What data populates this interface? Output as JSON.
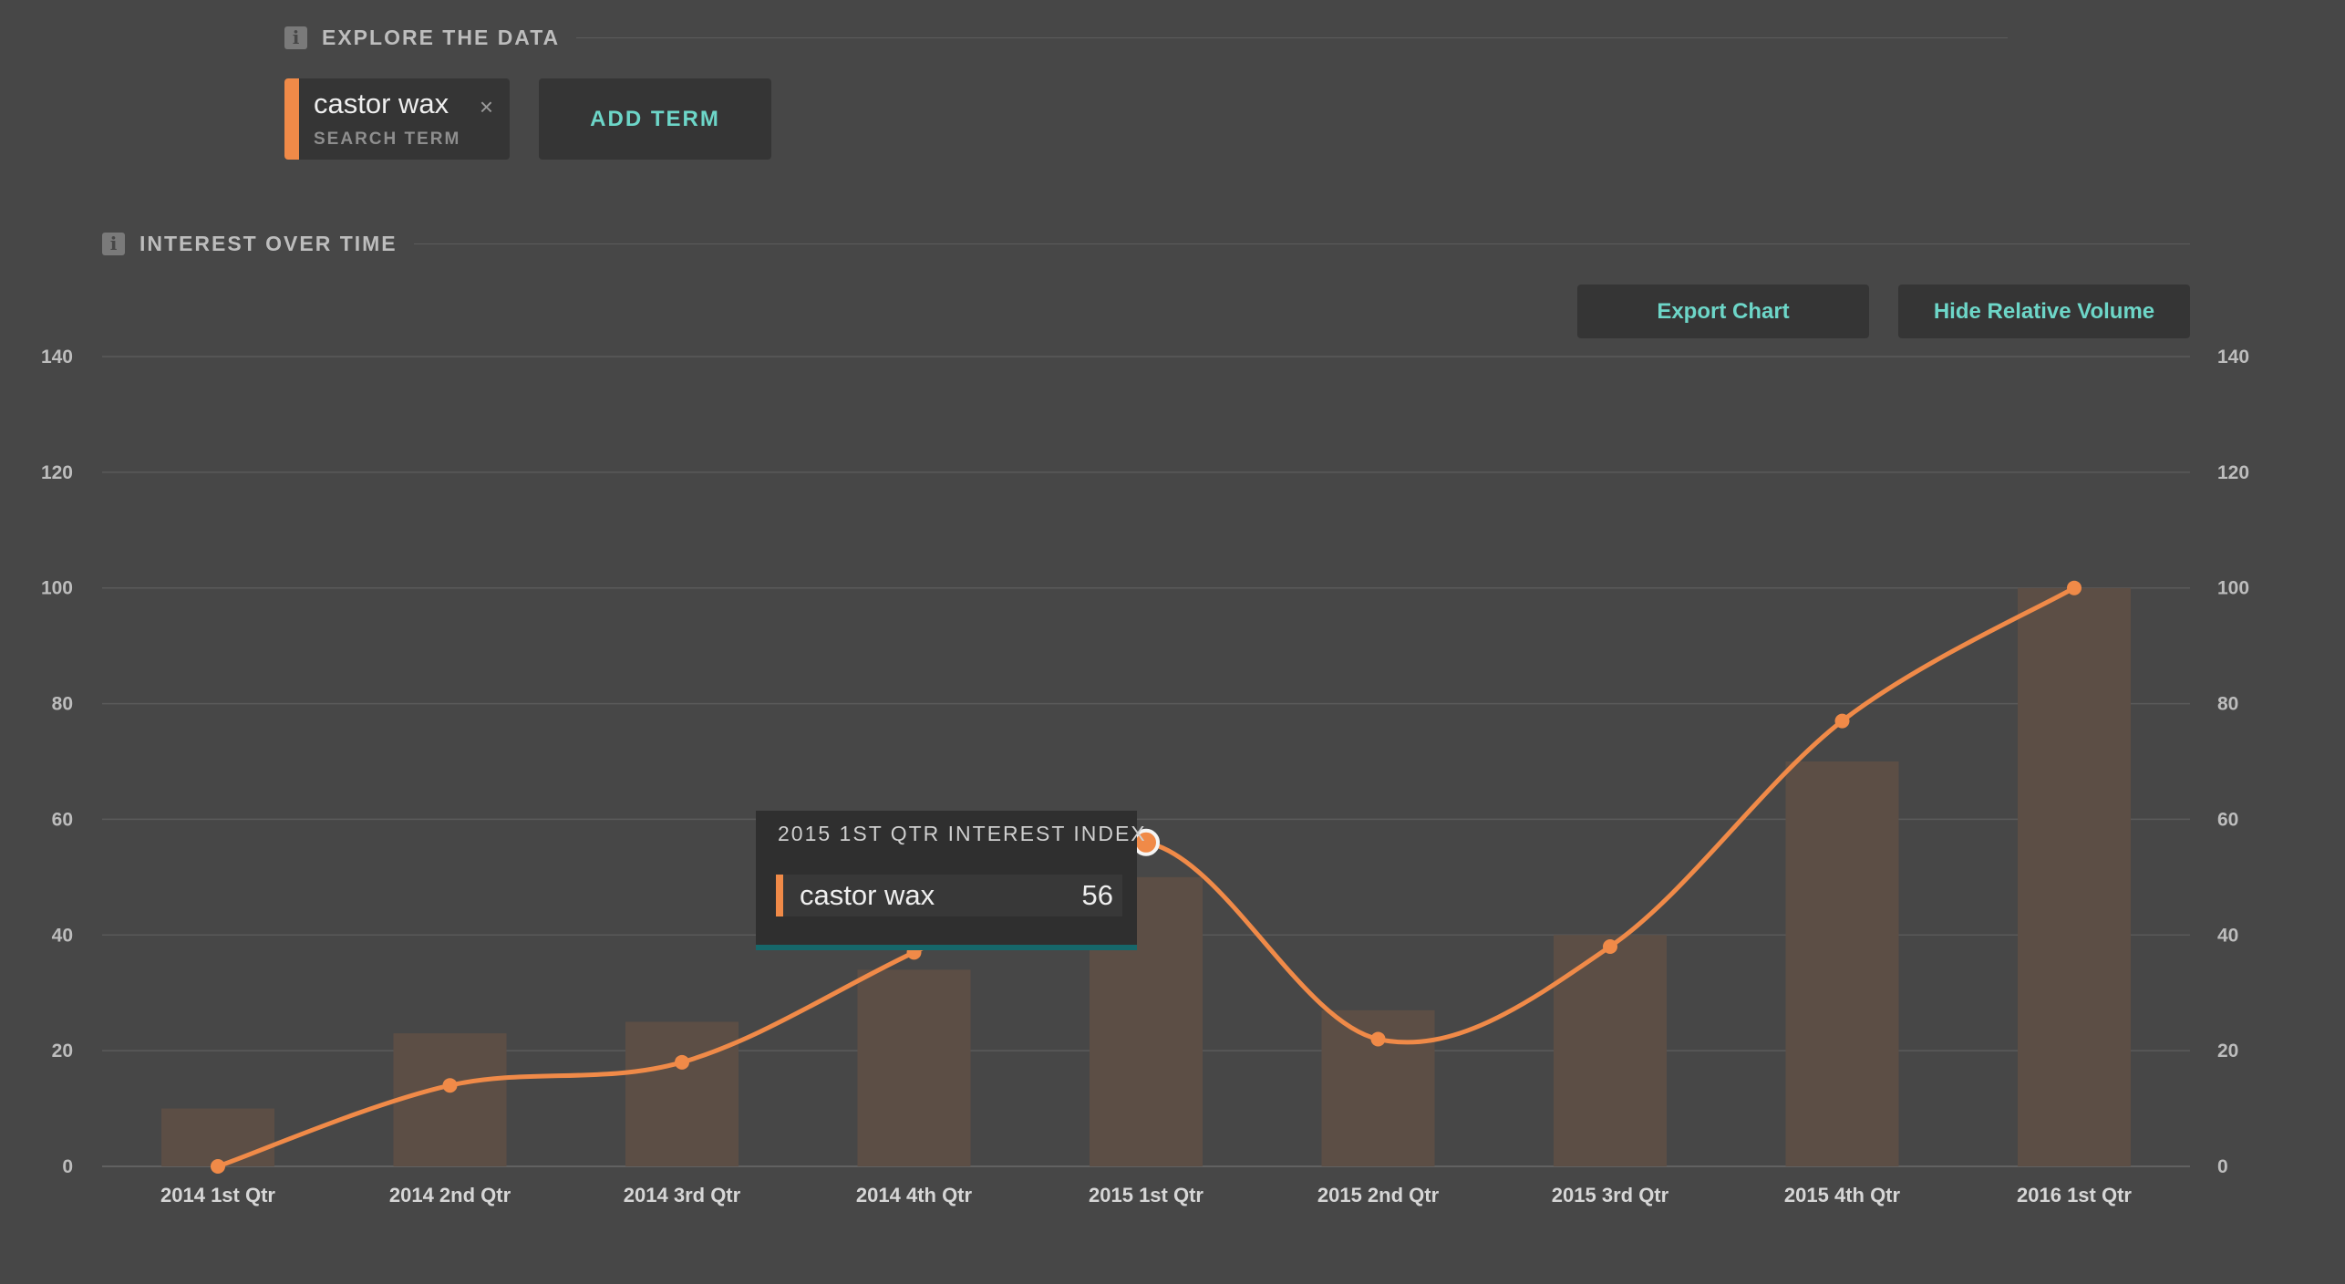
{
  "explore": {
    "title": "EXPLORE THE DATA",
    "info_icon": "info-icon"
  },
  "term": {
    "name": "castor wax",
    "subtitle": "SEARCH TERM",
    "close_glyph": "×",
    "color": "#f08a48"
  },
  "add_term_label": "ADD TERM",
  "interest": {
    "title": "INTEREST OVER TIME",
    "info_icon": "info-icon"
  },
  "toolbar": {
    "export_label": "Export Chart",
    "hide_volume_label": "Hide Relative Volume"
  },
  "tooltip": {
    "title": "2015 1ST QTR INTEREST INDEX",
    "term": "castor wax",
    "value": "56"
  },
  "chart_data": {
    "type": "bar",
    "categories": [
      "2014 1st Qtr",
      "2014 2nd Qtr",
      "2014 3rd Qtr",
      "2014 4th Qtr",
      "2015 1st Qtr",
      "2015 2nd Qtr",
      "2015 3rd Qtr",
      "2015 4th Qtr",
      "2016 1st Qtr"
    ],
    "series": [
      {
        "kind": "bar",
        "values": [
          10,
          23,
          25,
          34,
          50,
          27,
          40,
          70,
          100
        ],
        "color": "#5c4e45"
      },
      {
        "kind": "line",
        "name": "castor wax",
        "values": [
          0,
          14,
          18,
          37,
          56,
          22,
          38,
          77,
          100
        ],
        "color": "#f08a48"
      }
    ],
    "ylim": [
      0,
      140
    ],
    "yticks": [
      0,
      20,
      40,
      60,
      80,
      100,
      120,
      140
    ],
    "grid": true,
    "highlighted_index": 4
  }
}
